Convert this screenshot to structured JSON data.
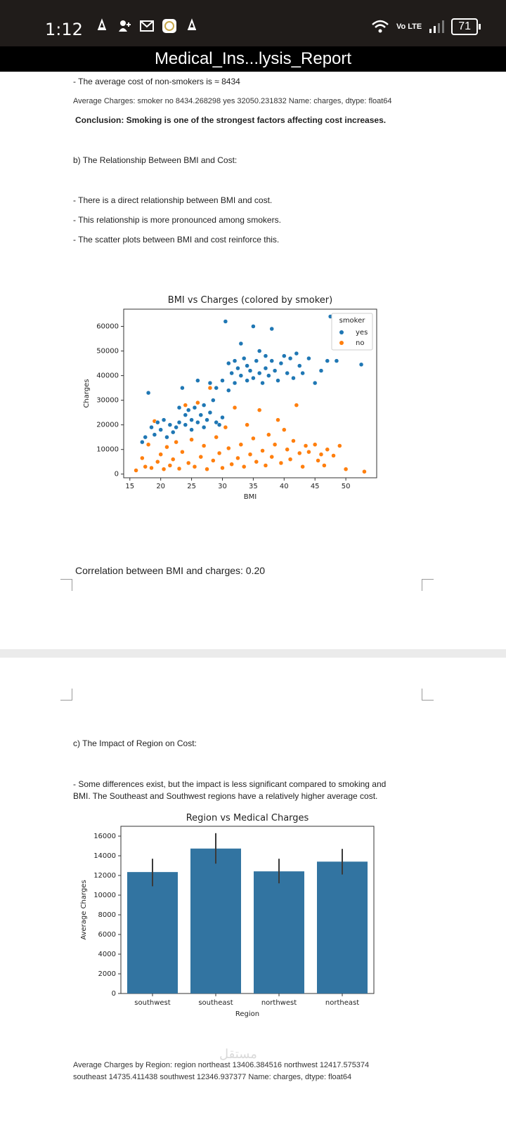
{
  "status_bar": {
    "time": "1:12",
    "lte_label": "Vo LTE",
    "battery": "71"
  },
  "document": {
    "title": "Medical_Ins...lysis_Report"
  },
  "content": {
    "avg_non_smokers": "- The average cost of non-smokers is ≈ 8434",
    "avg_charges_smoker": "Average Charges: smoker no 8434.268298 yes 32050.231832 Name: charges, dtype: float64",
    "conclusion": "Conclusion: Smoking is one of the strongest factors affecting cost increases.",
    "section_b_title": "b) The Relationship Between BMI and Cost:",
    "bullet_b1": "- There is a direct relationship between BMI and cost.",
    "bullet_b2": "- This relationship is more pronounced among smokers.",
    "bullet_b3": "- The scatter plots between BMI and cost reinforce this.",
    "correlation": "Correlation between BMI and charges: 0.20",
    "section_c_title": "c) The Impact of Region on Cost:",
    "bullet_c1_line1": "- Some differences exist, but the impact is less significant compared to smoking and",
    "bullet_c1_line2": "BMI. The Southeast and Southwest regions have a relatively higher average cost.",
    "avg_by_region_line1": "Average Charges by Region: region northeast 13406.384516 northwest 12417.575374",
    "avg_by_region_line2": "southeast 14735.411438 southwest 12346.937377 Name: charges, dtype: float64",
    "watermark": "مستقل"
  },
  "chart_data": [
    {
      "type": "scatter",
      "title": "BMI vs Charges (colored by smoker)",
      "xlabel": "BMI",
      "ylabel": "Charges",
      "xlim": [
        14,
        55
      ],
      "ylim": [
        -1500,
        67000
      ],
      "xticks": [
        15,
        20,
        25,
        30,
        35,
        40,
        45,
        50
      ],
      "yticks": [
        0,
        10000,
        20000,
        30000,
        40000,
        50000,
        60000
      ],
      "legend": {
        "title": "smoker",
        "position": "top-right"
      },
      "colors": {
        "yes": "#1f77b4",
        "no": "#ff7f0e"
      },
      "series": [
        {
          "name": "yes",
          "points": [
            [
              17,
              13000
            ],
            [
              17.5,
              15000
            ],
            [
              18,
              33000
            ],
            [
              18.5,
              19000
            ],
            [
              19,
              16000
            ],
            [
              19.5,
              21000
            ],
            [
              20,
              18000
            ],
            [
              20.5,
              22000
            ],
            [
              21,
              15000
            ],
            [
              21.5,
              20000
            ],
            [
              22,
              17000
            ],
            [
              22.5,
              19000
            ],
            [
              23,
              21000
            ],
            [
              23,
              27000
            ],
            [
              23.5,
              35000
            ],
            [
              24,
              20000
            ],
            [
              24,
              24000
            ],
            [
              24.5,
              26000
            ],
            [
              25,
              18000
            ],
            [
              25,
              22000
            ],
            [
              25.5,
              27000
            ],
            [
              26,
              21000
            ],
            [
              26,
              38000
            ],
            [
              26.5,
              24000
            ],
            [
              27,
              19000
            ],
            [
              27,
              28000
            ],
            [
              27.5,
              22000
            ],
            [
              28,
              37000
            ],
            [
              28,
              25000
            ],
            [
              28.5,
              30000
            ],
            [
              29,
              21000
            ],
            [
              29,
              35000
            ],
            [
              29.5,
              20000
            ],
            [
              30,
              23000
            ],
            [
              30,
              38000
            ],
            [
              30.5,
              62000
            ],
            [
              31,
              34000
            ],
            [
              31,
              45000
            ],
            [
              31.5,
              41000
            ],
            [
              32,
              46000
            ],
            [
              32,
              37000
            ],
            [
              32.5,
              43000
            ],
            [
              33,
              40000
            ],
            [
              33,
              53000
            ],
            [
              33.5,
              47000
            ],
            [
              34,
              38000
            ],
            [
              34,
              44000
            ],
            [
              34.5,
              42000
            ],
            [
              35,
              60000
            ],
            [
              35,
              39000
            ],
            [
              35.5,
              46000
            ],
            [
              36,
              41000
            ],
            [
              36,
              50000
            ],
            [
              36.5,
              37000
            ],
            [
              37,
              43000
            ],
            [
              37,
              48000
            ],
            [
              37.5,
              40000
            ],
            [
              38,
              59000
            ],
            [
              38,
              46000
            ],
            [
              38.5,
              42000
            ],
            [
              39,
              38000
            ],
            [
              39.5,
              45000
            ],
            [
              40,
              48000
            ],
            [
              40.5,
              41000
            ],
            [
              41,
              47000
            ],
            [
              41.5,
              39000
            ],
            [
              42,
              49000
            ],
            [
              42.5,
              44000
            ],
            [
              43,
              41000
            ],
            [
              44,
              47000
            ],
            [
              45,
              37000
            ],
            [
              46,
              42000
            ],
            [
              47,
              46000
            ],
            [
              47.5,
              64000
            ],
            [
              48.5,
              46000
            ],
            [
              52.5,
              44500
            ]
          ]
        },
        {
          "name": "no",
          "points": [
            [
              16,
              1500
            ],
            [
              17,
              6500
            ],
            [
              17.5,
              3000
            ],
            [
              18,
              12000
            ],
            [
              18.5,
              2500
            ],
            [
              19,
              21500
            ],
            [
              19.5,
              5000
            ],
            [
              20,
              8000
            ],
            [
              20.5,
              2000
            ],
            [
              21,
              11000
            ],
            [
              21.5,
              3500
            ],
            [
              22,
              6000
            ],
            [
              22.5,
              13000
            ],
            [
              23,
              2200
            ],
            [
              23.5,
              9000
            ],
            [
              24,
              28000
            ],
            [
              24.5,
              4500
            ],
            [
              25,
              14000
            ],
            [
              25.5,
              3000
            ],
            [
              26,
              29000
            ],
            [
              26.5,
              7000
            ],
            [
              27,
              11500
            ],
            [
              27.5,
              2000
            ],
            [
              28,
              35000
            ],
            [
              28.5,
              5500
            ],
            [
              29,
              15000
            ],
            [
              29.5,
              8500
            ],
            [
              30,
              2500
            ],
            [
              30.5,
              19000
            ],
            [
              31,
              10500
            ],
            [
              31.5,
              4000
            ],
            [
              32,
              27000
            ],
            [
              32.5,
              6500
            ],
            [
              33,
              12000
            ],
            [
              33.5,
              3000
            ],
            [
              34,
              20000
            ],
            [
              34.5,
              8000
            ],
            [
              35,
              14500
            ],
            [
              35.5,
              5000
            ],
            [
              36,
              26000
            ],
            [
              36.5,
              9500
            ],
            [
              37,
              3500
            ],
            [
              37.5,
              16000
            ],
            [
              38,
              7000
            ],
            [
              38.5,
              12000
            ],
            [
              39,
              22000
            ],
            [
              39.5,
              4500
            ],
            [
              40,
              18000
            ],
            [
              40.5,
              10000
            ],
            [
              41,
              6000
            ],
            [
              41.5,
              13500
            ],
            [
              42,
              28000
            ],
            [
              42.5,
              8500
            ],
            [
              43,
              3000
            ],
            [
              43.5,
              11500
            ],
            [
              44,
              9000
            ],
            [
              45,
              12000
            ],
            [
              45.5,
              5500
            ],
            [
              46,
              8000
            ],
            [
              46.5,
              3500
            ],
            [
              47,
              10000
            ],
            [
              48,
              7500
            ],
            [
              49,
              11500
            ],
            [
              50,
              2000
            ],
            [
              53,
              1000
            ]
          ]
        }
      ]
    },
    {
      "type": "bar",
      "title": "Region vs Medical Charges",
      "xlabel": "Region",
      "ylabel": "Average Charges",
      "ylim": [
        0,
        17000
      ],
      "yticks": [
        0,
        2000,
        4000,
        6000,
        8000,
        10000,
        12000,
        14000,
        16000
      ],
      "categories": [
        "southwest",
        "southeast",
        "northwest",
        "northeast"
      ],
      "values": [
        12346.94,
        14735.41,
        12417.58,
        13406.38
      ],
      "error_low": [
        10900,
        13200,
        11200,
        12100
      ],
      "error_high": [
        13700,
        16300,
        13700,
        14700
      ],
      "color": "#3274a1"
    }
  ]
}
